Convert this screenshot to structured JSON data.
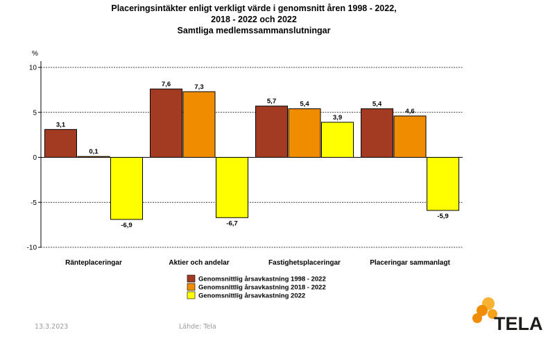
{
  "chart_data": {
    "type": "bar",
    "title_lines": [
      "Placeringsintäkter enligt verkligt värde i genomsnitt åren 1998 - 2022,",
      "2018 - 2022 och 2022",
      "Samtliga medlemssammanslutningar"
    ],
    "ylabel": "%",
    "ylim": [
      -10,
      10
    ],
    "yticks": [
      10,
      5,
      0,
      -5,
      -10
    ],
    "ytick_labels": [
      "10",
      "5",
      "0",
      "-5",
      "-10"
    ],
    "grid": true,
    "legend_position": "bottom-center",
    "categories": [
      "Ränteplaceringar",
      "Aktier och andelar",
      "Fastighetsplaceringar",
      "Placeringar sammanlagt"
    ],
    "series": [
      {
        "name": "Genomsnittlig årsavkastning 1998 - 2022",
        "color": "#a33a22",
        "values": [
          3.1,
          7.6,
          5.7,
          5.4
        ],
        "labels": [
          "3,1",
          "7,6",
          "5,7",
          "5,4"
        ]
      },
      {
        "name": "Genomsnittlig årsavkastning 2018 - 2022",
        "color": "#f08c00",
        "values": [
          0.1,
          7.3,
          5.4,
          4.6
        ],
        "labels": [
          "0,1",
          "7,3",
          "5,4",
          "4,6"
        ]
      },
      {
        "name": "Genomsnittlig årsavkastning 2022",
        "color": "#ffff00",
        "values": [
          -6.9,
          -6.7,
          3.9,
          -5.9
        ],
        "labels": [
          "-6,9",
          "-6,7",
          "3,9",
          "-5,9"
        ]
      }
    ]
  },
  "footer": {
    "date": "13.3.2023",
    "source": "Lähde: Tela"
  },
  "brand": {
    "name": "TELA",
    "colors": [
      "#f08c00",
      "#f7b233"
    ]
  }
}
